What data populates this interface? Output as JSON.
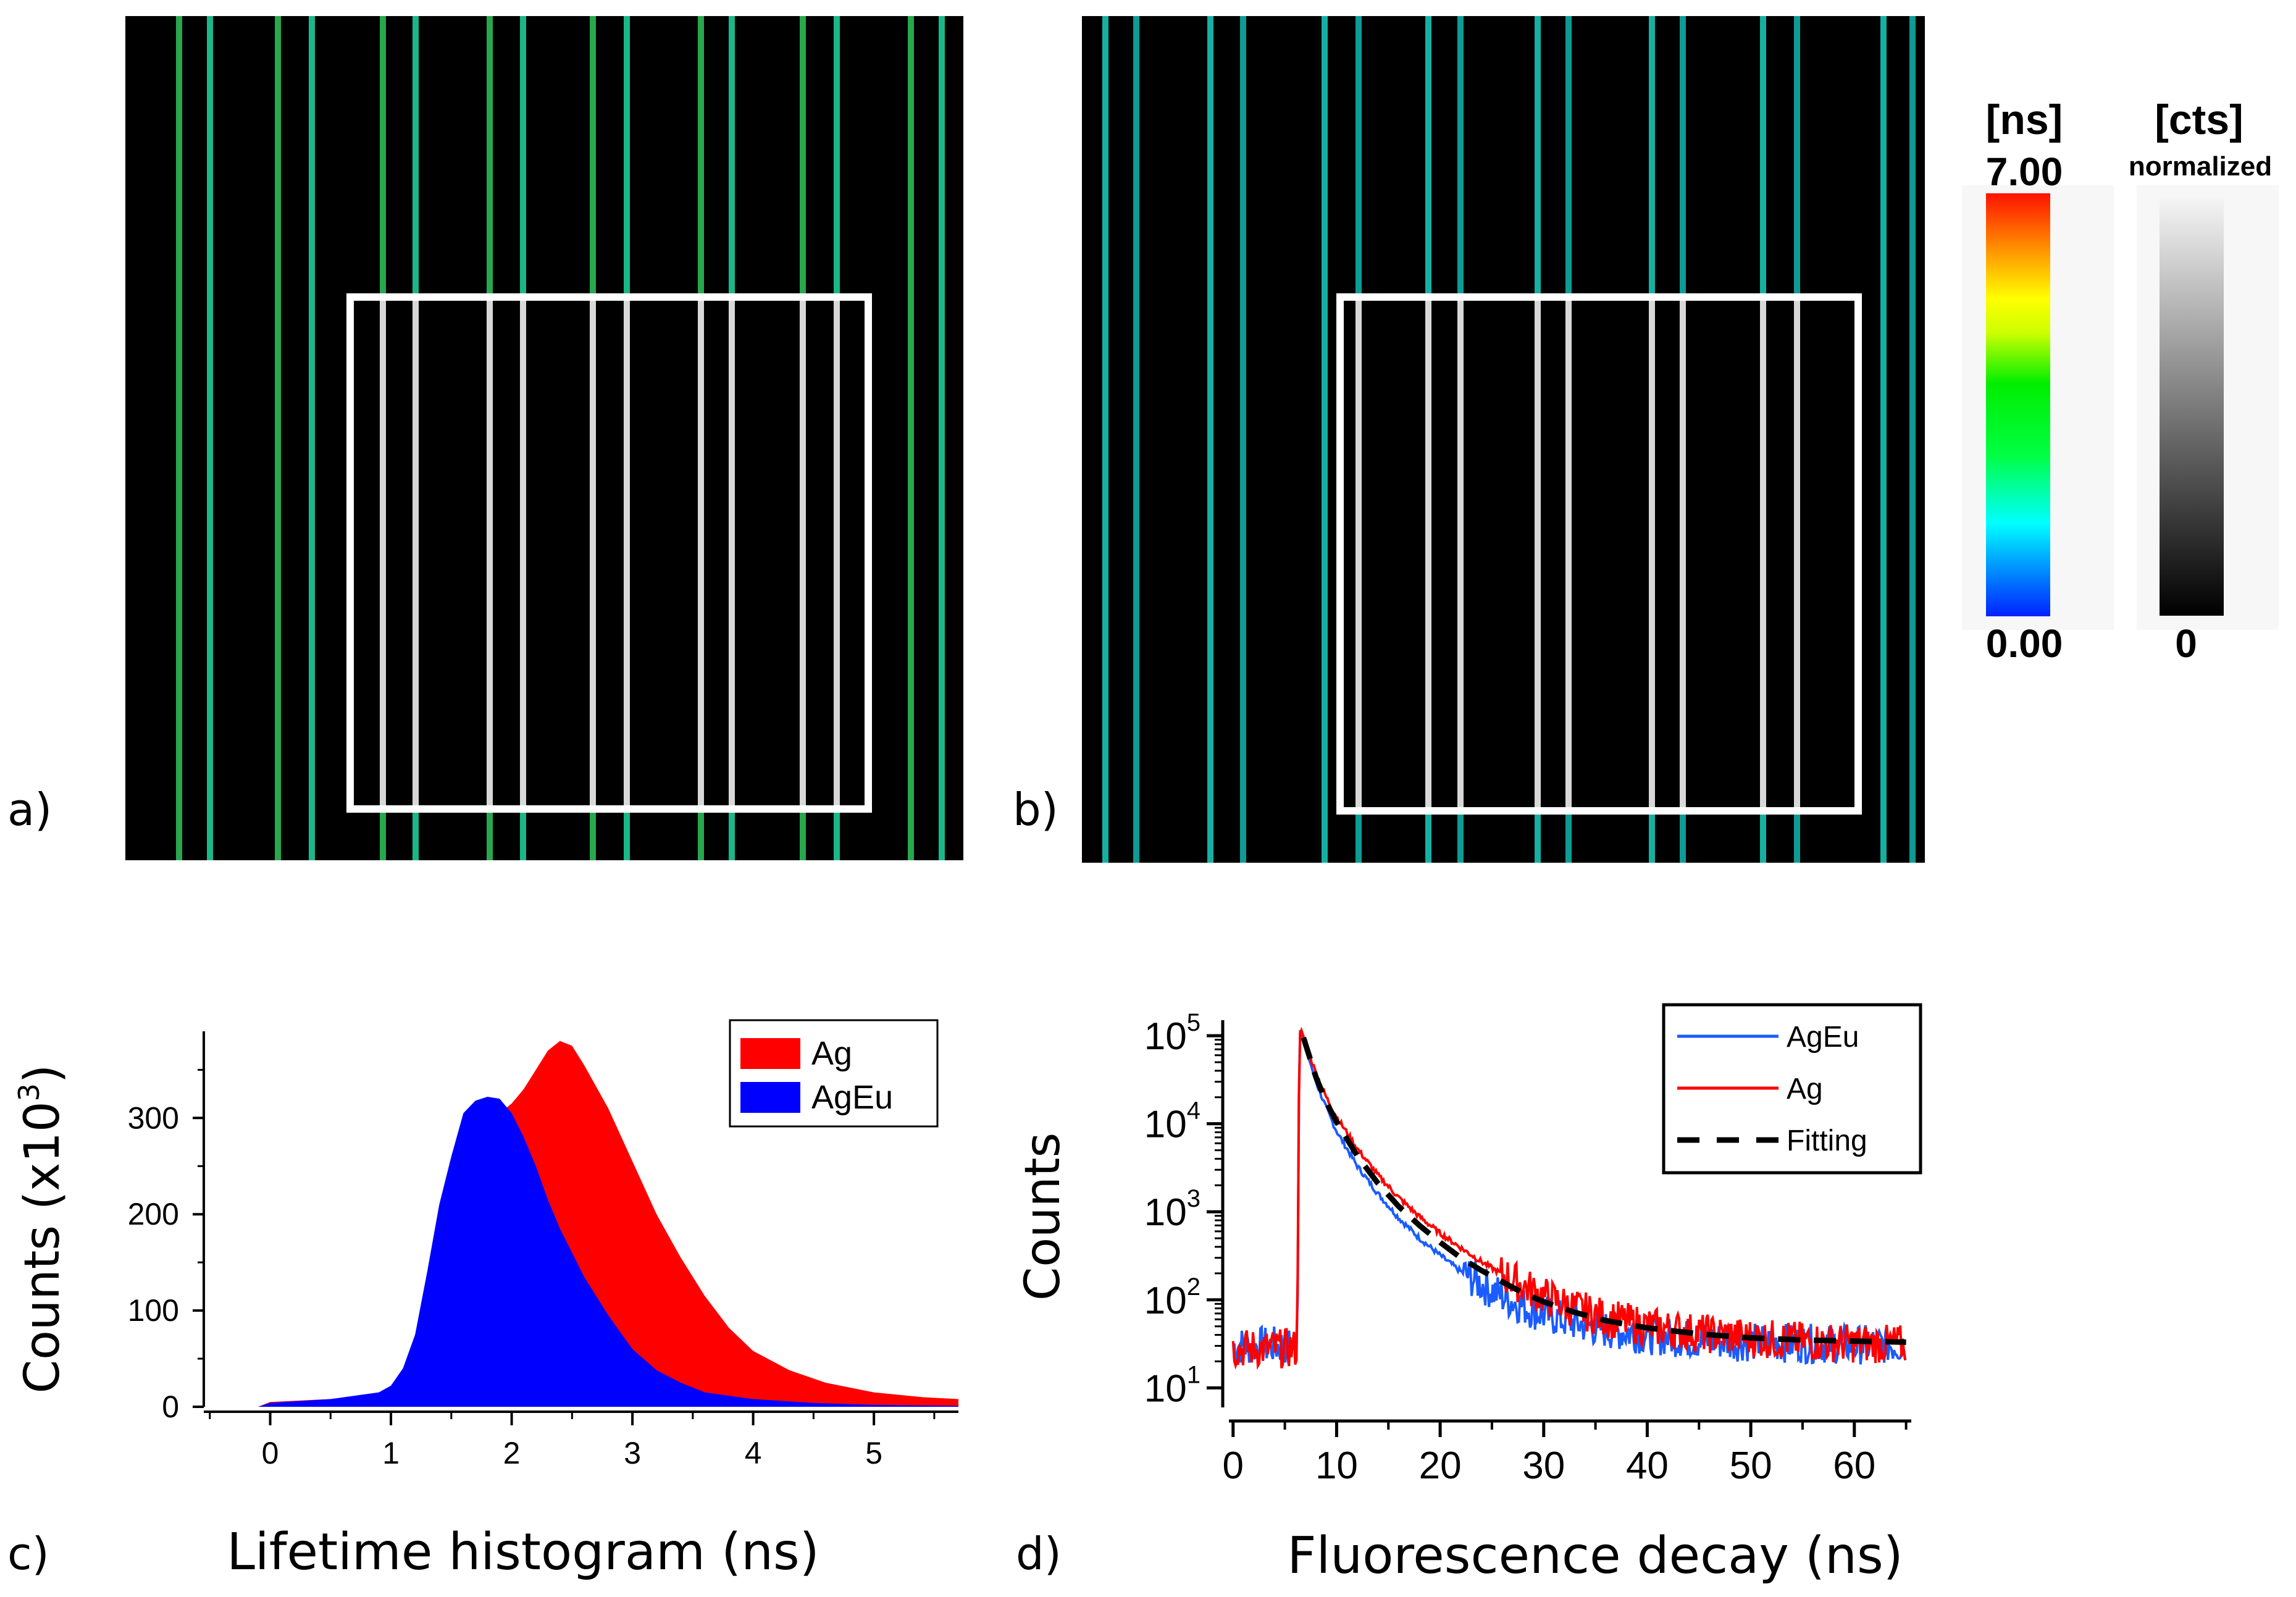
{
  "panels": {
    "a": {
      "label": "a)"
    },
    "b": {
      "label": "b)"
    },
    "c": {
      "label": "c)"
    },
    "d": {
      "label": "d)"
    }
  },
  "colorbars": {
    "lifetime": {
      "title": "[ns]",
      "max_label": "7.00",
      "min_label": "0.00"
    },
    "counts": {
      "title": "[cts]",
      "subtitle": "normalized",
      "min_label": "0"
    }
  },
  "colors": {
    "ag": "#ff0000",
    "ageu": "#0000ff",
    "ageu_line": "#1a5cff",
    "fit": "#000000",
    "image_bg": "#000000",
    "roi_box": "#ffffff"
  },
  "chart_data": [
    {
      "id": "c",
      "type": "area",
      "title": "",
      "xlabel": "Lifetime histogram (ns)",
      "ylabel": "Counts (x10",
      "ylabel_sup": "3",
      "ylabel_close": ")",
      "xlim": [
        -0.55,
        5.7
      ],
      "ylim": [
        0,
        390
      ],
      "xticks": [
        0,
        1,
        2,
        3,
        4,
        5
      ],
      "yticks": [
        0,
        100,
        200,
        300
      ],
      "legend_position": "top-right",
      "series": [
        {
          "name": "Ag",
          "color": "#ff0000",
          "x": [
            -0.55,
            -0.1,
            0.0,
            0.5,
            0.9,
            1.1,
            1.3,
            1.5,
            1.7,
            1.9,
            2.0,
            2.1,
            2.2,
            2.3,
            2.4,
            2.5,
            2.6,
            2.8,
            3.0,
            3.2,
            3.4,
            3.6,
            3.8,
            4.0,
            4.3,
            4.6,
            5.0,
            5.4,
            5.7
          ],
          "values": [
            0,
            0,
            5,
            8,
            12,
            25,
            75,
            160,
            255,
            305,
            315,
            330,
            350,
            370,
            380,
            375,
            355,
            310,
            255,
            200,
            155,
            115,
            82,
            58,
            38,
            25,
            15,
            10,
            8
          ]
        },
        {
          "name": "AgEu",
          "color": "#0000ff",
          "x": [
            -0.55,
            -0.1,
            0.0,
            0.5,
            0.9,
            1.0,
            1.1,
            1.2,
            1.3,
            1.4,
            1.5,
            1.6,
            1.7,
            1.8,
            1.9,
            2.0,
            2.1,
            2.2,
            2.3,
            2.4,
            2.6,
            2.8,
            3.0,
            3.2,
            3.4,
            3.6,
            4.0,
            4.5,
            5.0,
            5.7
          ],
          "values": [
            0,
            0,
            4,
            8,
            15,
            22,
            40,
            75,
            140,
            210,
            260,
            305,
            318,
            322,
            320,
            305,
            280,
            250,
            215,
            185,
            135,
            95,
            60,
            38,
            25,
            15,
            8,
            4,
            2,
            1
          ]
        }
      ]
    },
    {
      "id": "d",
      "type": "line",
      "title": "",
      "xlabel": "Fluorescence decay (ns)",
      "ylabel": "Counts",
      "yscale": "log",
      "xlim": [
        -1,
        65.5
      ],
      "ylim": [
        6,
        150000
      ],
      "xticks": [
        0,
        10,
        20,
        30,
        40,
        50,
        60
      ],
      "yticks": [
        10,
        100,
        1000,
        10000,
        100000
      ],
      "ytick_base": "10",
      "ytick_exponents": [
        "1",
        "2",
        "3",
        "4",
        "5"
      ],
      "legend_position": "top-right",
      "series": [
        {
          "name": "AgEu",
          "color": "#1a5cff",
          "kind": "noisy",
          "x": [
            0,
            6.2,
            6.4,
            6.6,
            7,
            8,
            9,
            10,
            12,
            14,
            16,
            18,
            20,
            22,
            24,
            26,
            28,
            30,
            33,
            36,
            40,
            45,
            50,
            55,
            60,
            65
          ],
          "values": [
            30,
            30,
            120000,
            110000,
            75000,
            30000,
            15000,
            8200,
            3300,
            1600,
            850,
            500,
            320,
            210,
            150,
            110,
            85,
            68,
            55,
            46,
            40,
            35,
            33,
            32,
            31,
            31
          ]
        },
        {
          "name": "Ag",
          "color": "#ff0000",
          "kind": "noisy",
          "x": [
            0,
            6.2,
            6.4,
            6.6,
            7,
            8,
            9,
            10,
            12,
            14,
            16,
            18,
            20,
            22,
            24,
            26,
            28,
            30,
            33,
            36,
            40,
            45,
            50,
            55,
            60,
            65
          ],
          "values": [
            28,
            28,
            115000,
            110000,
            80000,
            38000,
            20000,
            12000,
            5200,
            2600,
            1450,
            880,
            570,
            390,
            270,
            195,
            145,
            110,
            80,
            62,
            50,
            42,
            37,
            34,
            32,
            31
          ]
        },
        {
          "name": "Fitting",
          "color": "#000000",
          "kind": "dashed",
          "x": [
            6.8,
            8,
            9,
            10,
            12,
            14,
            16,
            18,
            20,
            22,
            24,
            26,
            28,
            30,
            33,
            36,
            40,
            45,
            50,
            55,
            60,
            65
          ],
          "values": [
            95000,
            34000,
            17500,
            10500,
            4300,
            2100,
            1150,
            700,
            450,
            300,
            215,
            160,
            120,
            95,
            72,
            58,
            48,
            41,
            37,
            35,
            34,
            33
          ]
        }
      ]
    }
  ]
}
